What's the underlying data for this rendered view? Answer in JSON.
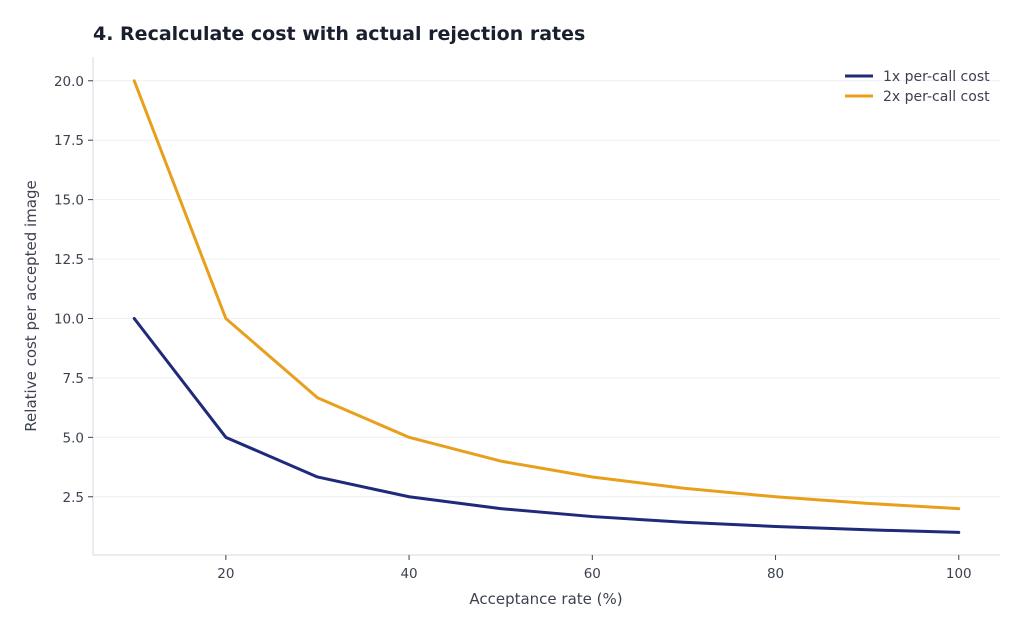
{
  "chart_data": {
    "type": "line",
    "title": "4. Recalculate cost with actual rejection rates",
    "xlabel": "Acceptance rate (%)",
    "ylabel": "Relative cost per accepted image",
    "x": [
      10,
      20,
      30,
      40,
      50,
      60,
      70,
      80,
      90,
      100
    ],
    "xlim": [
      5.5,
      104.5
    ],
    "ylim": [
      0.05,
      21.0
    ],
    "xticks": [
      20,
      40,
      60,
      80,
      100
    ],
    "yticks": [
      2.5,
      5.0,
      7.5,
      10.0,
      12.5,
      15.0,
      17.5,
      20.0
    ],
    "xtick_labels": [
      "20",
      "40",
      "60",
      "80",
      "100"
    ],
    "ytick_labels": [
      "2.5",
      "5.0",
      "7.5",
      "10.0",
      "12.5",
      "15.0",
      "17.5",
      "20.0"
    ],
    "grid": true,
    "legend_position": "top-right",
    "series": [
      {
        "name": "1x per-call cost",
        "color": "#1f2a7a",
        "values": [
          10.0,
          5.0,
          3.333,
          2.5,
          2.0,
          1.667,
          1.429,
          1.25,
          1.111,
          1.0
        ]
      },
      {
        "name": "2x per-call cost",
        "color": "#e8a01c",
        "values": [
          20.0,
          10.0,
          6.667,
          5.0,
          4.0,
          3.333,
          2.857,
          2.5,
          2.222,
          2.0
        ]
      }
    ]
  }
}
